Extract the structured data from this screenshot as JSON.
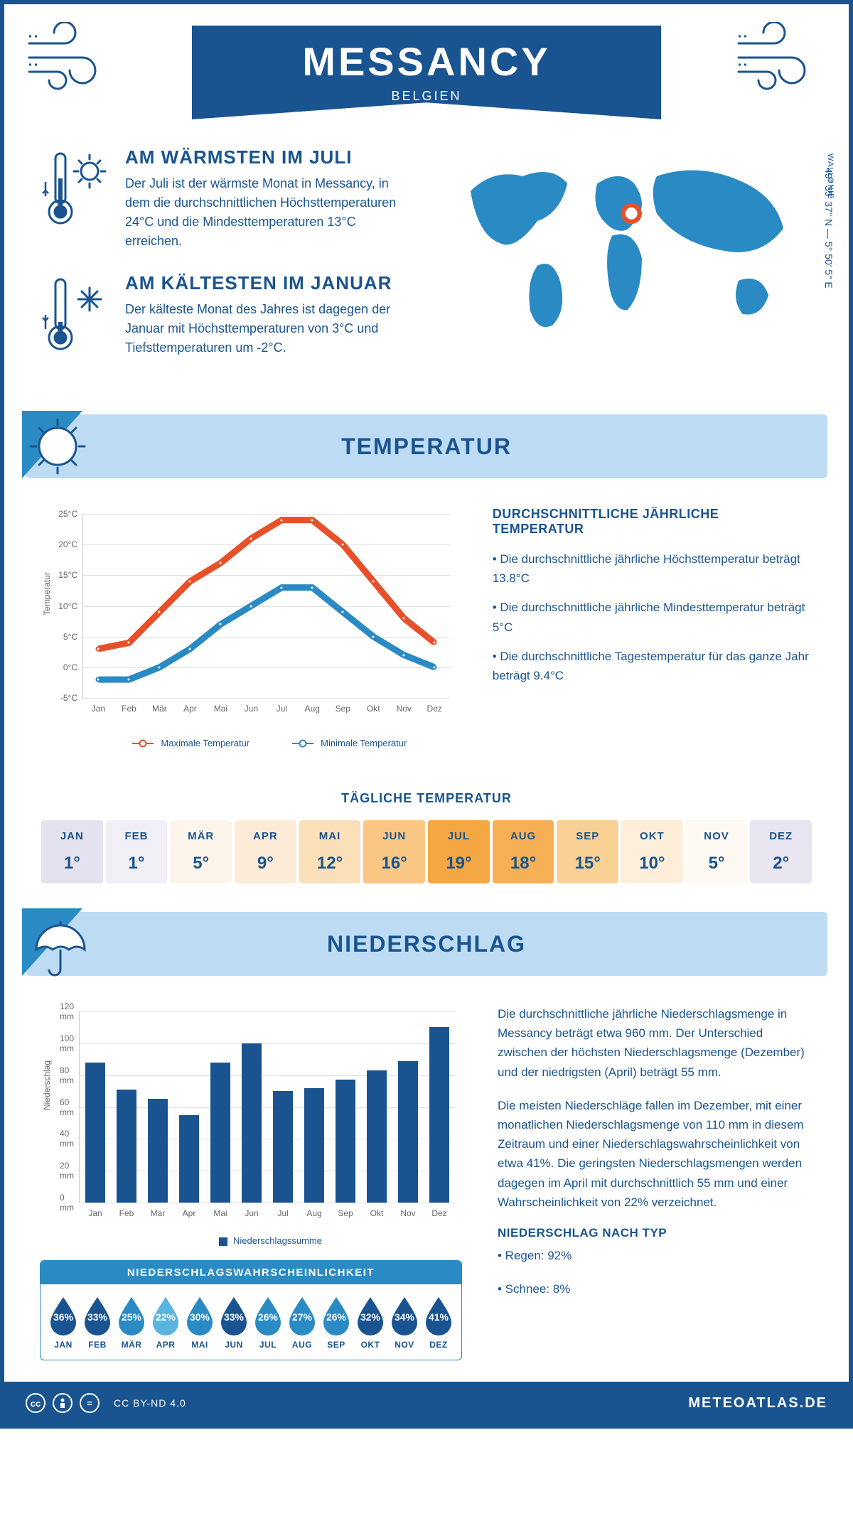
{
  "header": {
    "city": "MESSANCY",
    "country": "BELGIEN"
  },
  "coords": "49° 35' 37'' N — 5° 50' 5'' E",
  "region": "WALLONIE",
  "facts": {
    "hot": {
      "title": "AM WÄRMSTEN IM JULI",
      "text": "Der Juli ist der wärmste Monat in Messancy, in dem die durchschnittlichen Höchsttemperaturen 24°C und die Mindesttemperaturen 13°C erreichen."
    },
    "cold": {
      "title": "AM KÄLTESTEN IM JANUAR",
      "text": "Der kälteste Monat des Jahres ist dagegen der Januar mit Höchsttemperaturen von 3°C und Tiefsttemperaturen um -2°C."
    }
  },
  "temperature_section": {
    "title": "TEMPERATUR",
    "chart": {
      "type": "line",
      "months": [
        "Jan",
        "Feb",
        "Mär",
        "Apr",
        "Mai",
        "Jun",
        "Jul",
        "Aug",
        "Sep",
        "Okt",
        "Nov",
        "Dez"
      ],
      "max_values": [
        3,
        4,
        9,
        14,
        17,
        21,
        24,
        24,
        20,
        14,
        8,
        4
      ],
      "min_values": [
        -2,
        -2,
        0,
        3,
        7,
        10,
        13,
        13,
        9,
        5,
        2,
        0
      ],
      "ylim": [
        -5,
        25
      ],
      "ytick_step": 5,
      "ylabel_suffix": "°C",
      "ytitle": "Temperatur",
      "max_color": "#e8502a",
      "min_color": "#2a8ac4",
      "grid_color": "#e0e0e0",
      "marker_size": 7,
      "line_width": 2,
      "legend_max": "Maximale Temperatur",
      "legend_min": "Minimale Temperatur"
    },
    "facts_title": "DURCHSCHNITTLICHE JÄHRLICHE TEMPERATUR",
    "fact1": "• Die durchschnittliche jährliche Höchsttemperatur beträgt 13.8°C",
    "fact2": "• Die durchschnittliche jährliche Mindesttemperatur beträgt 5°C",
    "fact3": "• Die durchschnittliche Tagestemperatur für das ganze Jahr beträgt 9.4°C"
  },
  "daily_temp": {
    "title": "TÄGLICHE TEMPERATUR",
    "months": [
      "JAN",
      "FEB",
      "MÄR",
      "APR",
      "MAI",
      "JUN",
      "JUL",
      "AUG",
      "SEP",
      "OKT",
      "NOV",
      "DEZ"
    ],
    "values": [
      "1°",
      "1°",
      "5°",
      "9°",
      "12°",
      "16°",
      "19°",
      "18°",
      "15°",
      "10°",
      "5°",
      "2°"
    ],
    "bg_colors": [
      "#e5e2ef",
      "#f0eff5",
      "#fdf5eb",
      "#fcebd6",
      "#fadfb9",
      "#f9c783",
      "#f5a743",
      "#f6af55",
      "#fad194",
      "#fceed8",
      "#fdf8f1",
      "#e9e6f1"
    ]
  },
  "precipitation_section": {
    "title": "NIEDERSCHLAG",
    "chart": {
      "type": "bar",
      "months": [
        "Jan",
        "Feb",
        "Mär",
        "Apr",
        "Mai",
        "Jun",
        "Jul",
        "Aug",
        "Sep",
        "Okt",
        "Nov",
        "Dez"
      ],
      "values": [
        88,
        71,
        65,
        55,
        88,
        100,
        70,
        72,
        77,
        83,
        89,
        110
      ],
      "ylim": [
        0,
        120
      ],
      "ytick_step": 20,
      "ylabel_suffix": " mm",
      "ytitle": "Niederschlag",
      "bar_color": "#1a5490",
      "grid_color": "#e0e0e0",
      "bar_width": 0.62,
      "legend": "Niederschlagssumme"
    },
    "para1": "Die durchschnittliche jährliche Niederschlagsmenge in Messancy beträgt etwa 960 mm. Der Unterschied zwischen der höchsten Niederschlagsmenge (Dezember) und der niedrigsten (April) beträgt 55 mm.",
    "para2": "Die meisten Niederschläge fallen im Dezember, mit einer monatlichen Niederschlagsmenge von 110 mm in diesem Zeitraum und einer Niederschlagswahrscheinlichkeit von etwa 41%. Die geringsten Niederschlagsmengen werden dagegen im April mit durchschnittlich 55 mm und einer Wahrscheinlichkeit von 22% verzeichnet.",
    "type_title": "NIEDERSCHLAG NACH TYP",
    "type1": "• Regen: 92%",
    "type2": "• Schnee: 8%"
  },
  "probability": {
    "title": "NIEDERSCHLAGSWAHRSCHEINLICHKEIT",
    "months": [
      "JAN",
      "FEB",
      "MÄR",
      "APR",
      "MAI",
      "JUN",
      "JUL",
      "AUG",
      "SEP",
      "OKT",
      "NOV",
      "DEZ"
    ],
    "values": [
      "36%",
      "33%",
      "25%",
      "22%",
      "30%",
      "33%",
      "26%",
      "27%",
      "26%",
      "32%",
      "34%",
      "41%"
    ],
    "colors": [
      "#1a5490",
      "#1a5490",
      "#2a8ac4",
      "#5ab4e0",
      "#2a8ac4",
      "#1a5490",
      "#2a8ac4",
      "#2a8ac4",
      "#2a8ac4",
      "#1a5490",
      "#1a5490",
      "#1a5490"
    ]
  },
  "footer": {
    "license": "CC BY-ND 4.0",
    "site": "METEOATLAS.DE"
  }
}
